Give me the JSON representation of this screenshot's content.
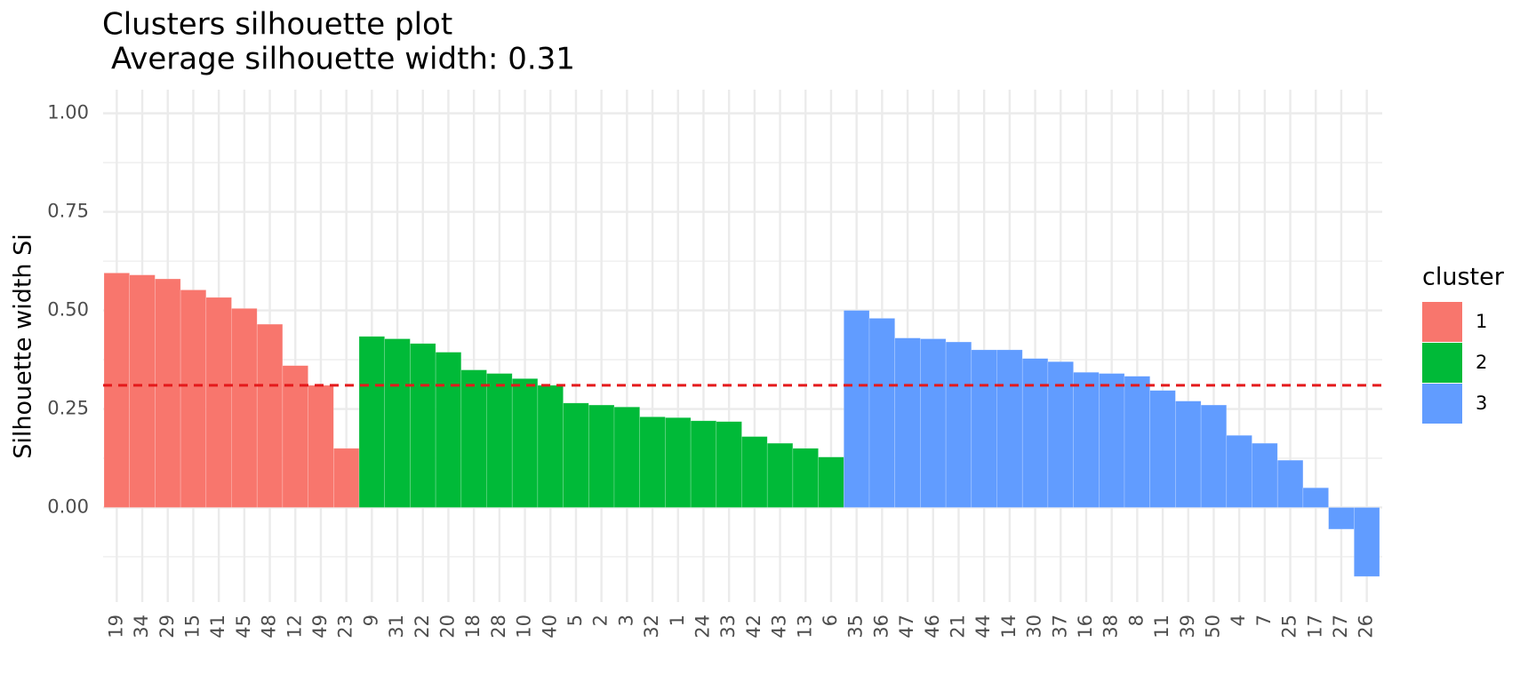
{
  "chart_data": {
    "type": "bar",
    "title": "Clusters silhouette plot",
    "subtitle": "Average silhouette width: 0.31",
    "y_label": "Silhouette width Si",
    "legend_title": "cluster",
    "categories": [
      "19",
      "34",
      "29",
      "15",
      "41",
      "45",
      "48",
      "12",
      "49",
      "23",
      "9",
      "31",
      "22",
      "20",
      "18",
      "28",
      "10",
      "40",
      "5",
      "2",
      "3",
      "32",
      "1",
      "24",
      "33",
      "42",
      "43",
      "13",
      "6",
      "35",
      "36",
      "47",
      "46",
      "21",
      "44",
      "14",
      "30",
      "37",
      "16",
      "38",
      "8",
      "11",
      "39",
      "50",
      "4",
      "7",
      "25",
      "17",
      "27",
      "26"
    ],
    "series": [
      {
        "name": "1",
        "color": "#F8766D",
        "values": [
          0.595,
          0.59,
          0.58,
          0.552,
          0.533,
          0.505,
          0.465,
          0.36,
          0.31,
          0.15,
          null,
          null,
          null,
          null,
          null,
          null,
          null,
          null,
          null,
          null,
          null,
          null,
          null,
          null,
          null,
          null,
          null,
          null,
          null,
          null,
          null,
          null,
          null,
          null,
          null,
          null,
          null,
          null,
          null,
          null,
          null,
          null,
          null,
          null,
          null,
          null,
          null,
          null,
          null,
          null
        ]
      },
      {
        "name": "2",
        "color": "#00BA38",
        "values": [
          null,
          null,
          null,
          null,
          null,
          null,
          null,
          null,
          null,
          null,
          0.434,
          0.428,
          0.416,
          0.394,
          0.349,
          0.34,
          0.327,
          0.31,
          0.265,
          0.26,
          0.255,
          0.23,
          0.228,
          0.22,
          0.218,
          0.18,
          0.163,
          0.15,
          0.128,
          null,
          null,
          null,
          null,
          null,
          null,
          null,
          null,
          null,
          null,
          null,
          null,
          null,
          null,
          null,
          null,
          null,
          null,
          null,
          null,
          null
        ]
      },
      {
        "name": "3",
        "color": "#619CFF",
        "values": [
          null,
          null,
          null,
          null,
          null,
          null,
          null,
          null,
          null,
          null,
          null,
          null,
          null,
          null,
          null,
          null,
          null,
          null,
          null,
          null,
          null,
          null,
          null,
          null,
          null,
          null,
          null,
          null,
          null,
          0.5,
          0.48,
          0.43,
          0.428,
          0.42,
          0.4,
          0.4,
          0.378,
          0.37,
          0.343,
          0.34,
          0.333,
          0.297,
          0.27,
          0.26,
          0.183,
          0.163,
          0.12,
          0.05,
          -0.055,
          -0.175
        ]
      }
    ],
    "average_line": {
      "value": 0.31,
      "color": "#E41A1C"
    },
    "ylim": [
      -0.24,
      1.06
    ],
    "yticks": [
      {
        "value": 0,
        "label": "0.00"
      },
      {
        "value": 0.25,
        "label": "0.25"
      },
      {
        "value": 0.5,
        "label": "0.50"
      },
      {
        "value": 0.75,
        "label": "0.75"
      },
      {
        "value": 1,
        "label": "1.00"
      }
    ],
    "y_minor_grid": [
      -0.125,
      0.125,
      0.375,
      0.625,
      0.875
    ],
    "grid": true,
    "legend_position": "right"
  }
}
